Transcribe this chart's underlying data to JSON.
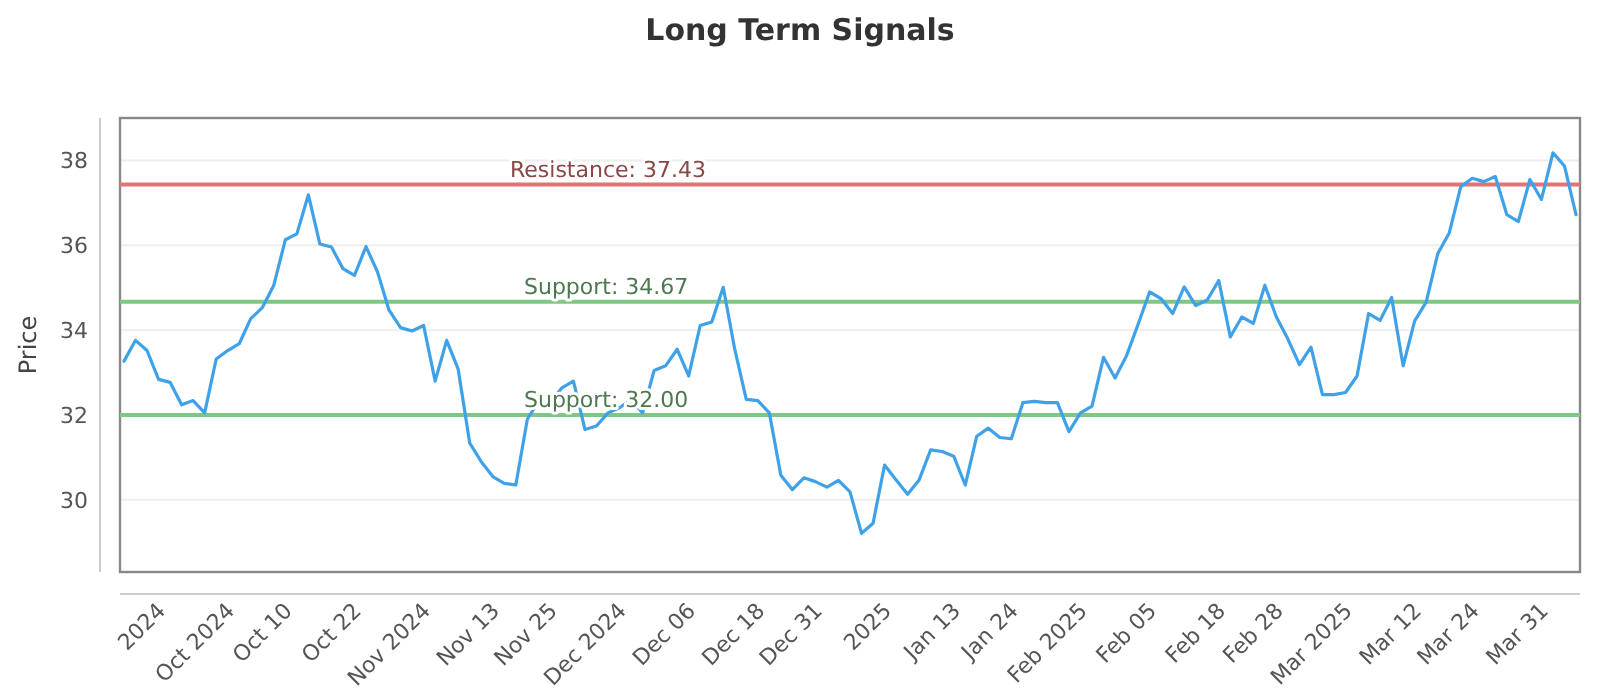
{
  "chart_data": {
    "type": "line",
    "title": "Long Term Signals",
    "ylabel": "Price",
    "categories": [
      null,
      null,
      null,
      "2024",
      null,
      null,
      null,
      null,
      null,
      "Oct 2024",
      null,
      null,
      null,
      null,
      "Oct 10",
      null,
      null,
      null,
      null,
      null,
      "Oct 22",
      null,
      null,
      null,
      null,
      null,
      "Nov 2024",
      null,
      null,
      null,
      null,
      null,
      "Nov 13",
      null,
      null,
      null,
      null,
      "Nov 25",
      null,
      null,
      null,
      null,
      null,
      "Dec 2024",
      null,
      null,
      null,
      null,
      null,
      "Dec 06",
      null,
      null,
      null,
      null,
      null,
      "Dec 18",
      null,
      null,
      null,
      null,
      "Dec 31",
      null,
      null,
      null,
      null,
      null,
      "2025",
      null,
      null,
      null,
      null,
      null,
      "Jan 13",
      null,
      null,
      null,
      null,
      "Jan 24",
      null,
      null,
      null,
      null,
      null,
      "Feb 2025",
      null,
      null,
      null,
      null,
      null,
      "Feb 05",
      null,
      null,
      null,
      null,
      null,
      "Feb 18",
      null,
      null,
      null,
      null,
      "Feb 28",
      null,
      null,
      null,
      null,
      null,
      "Mar 2025",
      null,
      null,
      null,
      null,
      null,
      "Mar 12",
      null,
      null,
      null,
      null,
      "Mar 24",
      null,
      null,
      null,
      null,
      null,
      "Mar 31",
      null,
      null,
      null
    ],
    "series": [
      {
        "color": "#3fa2e8",
        "values": [
          33.27,
          33.76,
          33.52,
          32.84,
          32.77,
          32.24,
          32.34,
          32.05,
          33.32,
          33.52,
          33.68,
          34.27,
          34.53,
          35.06,
          36.13,
          36.27,
          37.19,
          36.03,
          35.96,
          35.45,
          35.29,
          35.97,
          35.37,
          34.47,
          34.06,
          33.98,
          34.11,
          32.8,
          33.76,
          33.08,
          31.34,
          30.9,
          30.55,
          30.39,
          30.35,
          31.9,
          32.34,
          32.29,
          32.64,
          32.8,
          31.66,
          31.74,
          32.05,
          32.17,
          32.36,
          32.05,
          33.05,
          33.16,
          33.55,
          32.92,
          34.11,
          34.19,
          35.01,
          33.55,
          32.37,
          32.34,
          32.05,
          30.58,
          30.24,
          30.52,
          30.43,
          30.3,
          30.46,
          30.19,
          29.21,
          29.45,
          30.82,
          30.47,
          30.13,
          30.47,
          31.18,
          31.14,
          31.03,
          30.35,
          31.5,
          31.69,
          31.47,
          31.44,
          32.29,
          32.32,
          32.29,
          32.29,
          31.61,
          32.05,
          32.21,
          33.36,
          32.87,
          33.4,
          34.14,
          34.9,
          34.74,
          34.39,
          35.02,
          34.58,
          34.71,
          35.17,
          33.84,
          34.31,
          34.16,
          35.06,
          34.31,
          33.79,
          33.19,
          33.6,
          32.48,
          32.48,
          32.53,
          32.92,
          34.39,
          34.23,
          34.77,
          33.16,
          34.22,
          34.66,
          35.8,
          36.29,
          37.38,
          37.58,
          37.5,
          37.62,
          36.72,
          36.56,
          37.55,
          37.08,
          38.18,
          37.87,
          36.72
        ]
      }
    ],
    "ylim": [
      28.3,
      39
    ],
    "yticks": [
      30,
      32,
      34,
      36,
      38
    ],
    "grid": "y",
    "ref_lines": [
      {
        "axis": "y",
        "value": 37.43,
        "label": "Resistance: 37.43",
        "color": "#e57373"
      },
      {
        "axis": "y",
        "value": 34.67,
        "label": "Support: 34.67",
        "color": "#81c784"
      },
      {
        "axis": "y",
        "value": 32.0,
        "label": "Support: 32.00",
        "color": "#81c784"
      }
    ]
  }
}
